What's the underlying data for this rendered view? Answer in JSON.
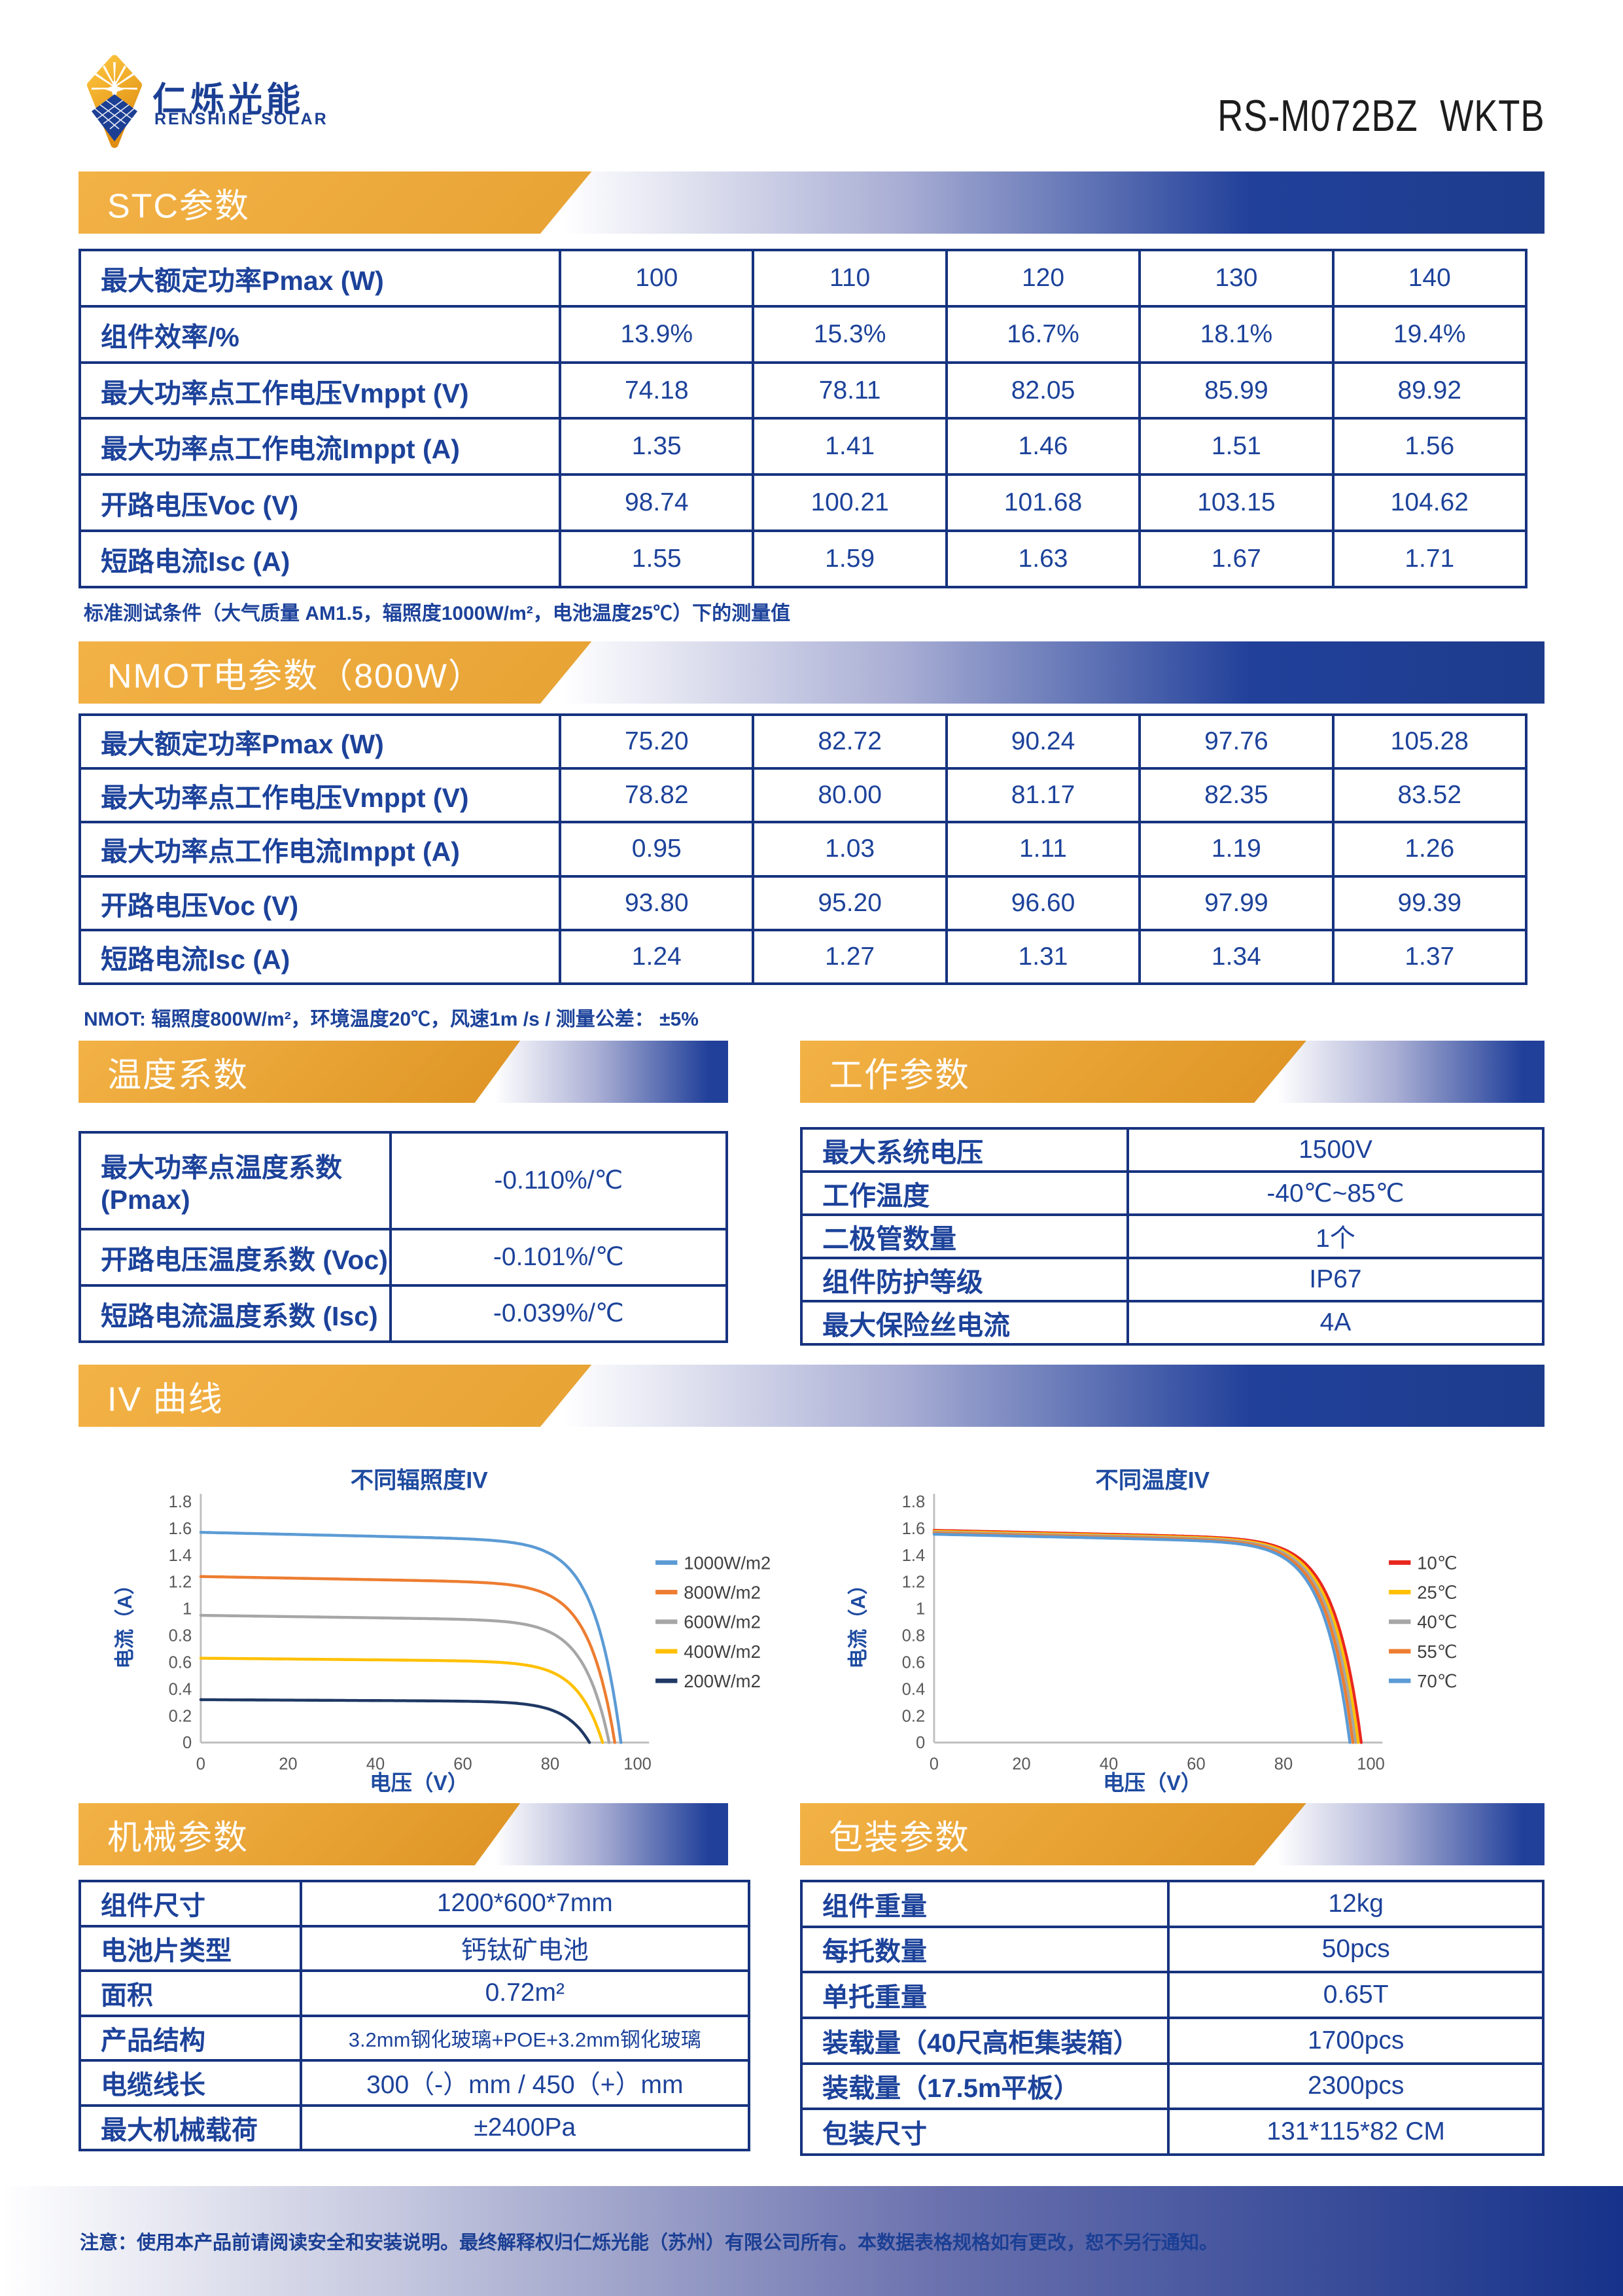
{
  "brand": {
    "name_cn": "仁烁光能",
    "name_en": "RENSHINE SOLAR"
  },
  "product_model": "RS-M072BZ WKTB",
  "sections": {
    "stc": {
      "title": "STC参数",
      "note": "标准测试条件（大气质量 AM1.5，辐照度1000W/m²，电池温度25℃）下的测量值",
      "rows": [
        {
          "label": "最大额定功率Pmax (W)",
          "values": [
            "100",
            "110",
            "120",
            "130",
            "140"
          ]
        },
        {
          "label": "组件效率/%",
          "values": [
            "13.9%",
            "15.3%",
            "16.7%",
            "18.1%",
            "19.4%"
          ]
        },
        {
          "label": "最大功率点工作电压Vmppt (V)",
          "values": [
            "74.18",
            "78.11",
            "82.05",
            "85.99",
            "89.92"
          ]
        },
        {
          "label": "最大功率点工作电流Imppt (A)",
          "values": [
            "1.35",
            "1.41",
            "1.46",
            "1.51",
            "1.56"
          ]
        },
        {
          "label": "开路电压Voc (V)",
          "values": [
            "98.74",
            "100.21",
            "101.68",
            "103.15",
            "104.62"
          ]
        },
        {
          "label": "短路电流Isc (A)",
          "values": [
            "1.55",
            "1.59",
            "1.63",
            "1.67",
            "1.71"
          ]
        }
      ]
    },
    "nmot": {
      "title": "NMOT电参数（800W）",
      "note": "NMOT: 辐照度800W/m²，环境温度20℃，风速1m /s / 测量公差： ±5%",
      "rows": [
        {
          "label": "最大额定功率Pmax (W)",
          "values": [
            "75.20",
            "82.72",
            "90.24",
            "97.76",
            "105.28"
          ]
        },
        {
          "label": "最大功率点工作电压Vmppt (V)",
          "values": [
            "78.82",
            "80.00",
            "81.17",
            "82.35",
            "83.52"
          ]
        },
        {
          "label": "最大功率点工作电流Imppt (A)",
          "values": [
            "0.95",
            "1.03",
            "1.11",
            "1.19",
            "1.26"
          ]
        },
        {
          "label": "开路电压Voc (V)",
          "values": [
            "93.80",
            "95.20",
            "96.60",
            "97.99",
            "99.39"
          ]
        },
        {
          "label": "短路电流Isc (A)",
          "values": [
            "1.24",
            "1.27",
            "1.31",
            "1.34",
            "1.37"
          ]
        }
      ]
    },
    "temp": {
      "title": "温度系数",
      "rows": [
        {
          "label": "最大功率点温度系数 (Pmax)",
          "value": "-0.110%/℃"
        },
        {
          "label": "开路电压温度系数 (Voc)",
          "value": "-0.101%/℃"
        },
        {
          "label": "短路电流温度系数 (Isc)",
          "value": "-0.039%/℃"
        }
      ]
    },
    "work": {
      "title": "工作参数",
      "rows": [
        {
          "label": "最大系统电压",
          "value": "1500V"
        },
        {
          "label": "工作温度",
          "value": "-40℃~85℃"
        },
        {
          "label": "二极管数量",
          "value": "1个"
        },
        {
          "label": "组件防护等级",
          "value": "IP67"
        },
        {
          "label": "最大保险丝电流",
          "value": "4A"
        }
      ]
    },
    "iv": {
      "title": "IV 曲线"
    },
    "mech": {
      "title": "机械参数",
      "rows": [
        {
          "label": "组件尺寸",
          "value": "1200*600*7mm"
        },
        {
          "label": "电池片类型",
          "value": "钙钛矿电池"
        },
        {
          "label": "面积",
          "value": "0.72m²"
        },
        {
          "label": "产品结构",
          "value": "3.2mm钢化玻璃+POE+3.2mm钢化玻璃"
        },
        {
          "label": "电缆线长",
          "value": "300（-）mm / 450（+）mm"
        },
        {
          "label": "最大机械载荷",
          "value": "±2400Pa"
        }
      ]
    },
    "pack": {
      "title": "包装参数",
      "rows": [
        {
          "label": "组件重量",
          "value": "12kg"
        },
        {
          "label": "每托数量",
          "value": "50pcs"
        },
        {
          "label": "单托重量",
          "value": "0.65T"
        },
        {
          "label": "装载量（40尺高柜集装箱）",
          "value": "1700pcs"
        },
        {
          "label": "装载量（17.5m平板）",
          "value": "2300pcs"
        },
        {
          "label": "包装尺寸",
          "value": "131*115*82 CM"
        }
      ]
    }
  },
  "footer": {
    "note": "注意：使用本产品前请阅读安全和安装说明。最终解释权归仁烁光能（苏州）有限公司所有。本数据表格规格如有更改，恕不另行通知。"
  },
  "colors": {
    "accent_orange": "#E29B2B",
    "accent_blue": "#1E3C8C",
    "table_border": "#17337F",
    "table_text": "#1C429A"
  },
  "chart_data": [
    {
      "type": "line",
      "title": "不同辐照度IV",
      "xlabel": "电压（V）",
      "ylabel": "电流（A）",
      "xlim": [
        0,
        100
      ],
      "ylim": [
        0,
        1.8
      ],
      "xticks": [
        0,
        20,
        40,
        60,
        80,
        100
      ],
      "yticks": [
        0,
        0.2,
        0.4,
        0.6,
        0.8,
        1,
        1.2,
        1.4,
        1.6,
        1.8
      ],
      "grid": false,
      "legend_position": "right",
      "series": [
        {
          "name": "1000W/m2",
          "color": "#5B9BD5",
          "isc": 1.57,
          "voc": 96.2
        },
        {
          "name": "800W/m2",
          "color": "#ED7D31",
          "isc": 1.24,
          "voc": 94.8
        },
        {
          "name": "600W/m2",
          "color": "#A6A6A6",
          "isc": 0.95,
          "voc": 93.5
        },
        {
          "name": "400W/m2",
          "color": "#FFC000",
          "isc": 0.63,
          "voc": 92.0
        },
        {
          "name": "200W/m2",
          "color": "#1F3864",
          "isc": 0.32,
          "voc": 89.0
        }
      ]
    },
    {
      "type": "line",
      "title": "不同温度IV",
      "xlabel": "电压（V）",
      "ylabel": "电流（A）",
      "xlim": [
        0,
        100
      ],
      "ylim": [
        0,
        1.8
      ],
      "xticks": [
        0,
        20,
        40,
        60,
        80,
        100
      ],
      "yticks": [
        0,
        0.2,
        0.4,
        0.6,
        0.8,
        1,
        1.2,
        1.4,
        1.6,
        1.8
      ],
      "grid": false,
      "legend_position": "right",
      "series": [
        {
          "name": "10℃",
          "color": "#E8281E",
          "isc": 1.585,
          "voc": 97.8
        },
        {
          "name": "25℃",
          "color": "#FFC000",
          "isc": 1.578,
          "voc": 97.1
        },
        {
          "name": "40℃",
          "color": "#A6A6A6",
          "isc": 1.571,
          "voc": 96.5
        },
        {
          "name": "55℃",
          "color": "#ED7D31",
          "isc": 1.564,
          "voc": 95.9
        },
        {
          "name": "70℃",
          "color": "#5B9BD5",
          "isc": 1.556,
          "voc": 95.2
        }
      ]
    }
  ]
}
